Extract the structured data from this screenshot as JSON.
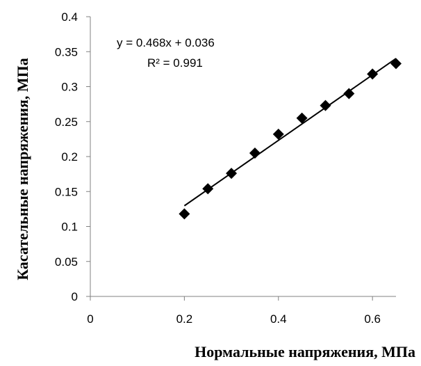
{
  "chart_data": {
    "type": "scatter",
    "title": "",
    "xlabel": "Нормальные напряжения, МПа",
    "ylabel": "Касательные напряжения, МПа",
    "xlim": [
      0,
      0.65
    ],
    "ylim": [
      0,
      0.4
    ],
    "x_ticks": [
      0,
      0.2,
      0.4,
      0.6
    ],
    "x_tick_labels": [
      "0",
      "0.2",
      "0.4",
      "0.6"
    ],
    "y_ticks": [
      0,
      0.05,
      0.1,
      0.15,
      0.2,
      0.25,
      0.3,
      0.35,
      0.4
    ],
    "y_tick_labels": [
      "0",
      "0.05",
      "0.1",
      "0.15",
      "0.2",
      "0.25",
      "0.3",
      "0.35",
      "0.4"
    ],
    "grid": false,
    "legend": "none",
    "marker": "diamond",
    "marker_color": "#000000",
    "series": [
      {
        "x": [
          0.2,
          0.25,
          0.3,
          0.35,
          0.4,
          0.45,
          0.5,
          0.55,
          0.6,
          0.65
        ],
        "y": [
          0.118,
          0.154,
          0.176,
          0.205,
          0.232,
          0.255,
          0.273,
          0.29,
          0.318,
          0.333
        ]
      }
    ],
    "trendline": {
      "type": "linear",
      "slope": 0.468,
      "intercept": 0.036,
      "x_range": [
        0.2,
        0.65
      ],
      "color": "#000000"
    },
    "annotations": {
      "equation": "y = 0.468x + 0.036",
      "r_squared": "R² = 0.991"
    }
  }
}
